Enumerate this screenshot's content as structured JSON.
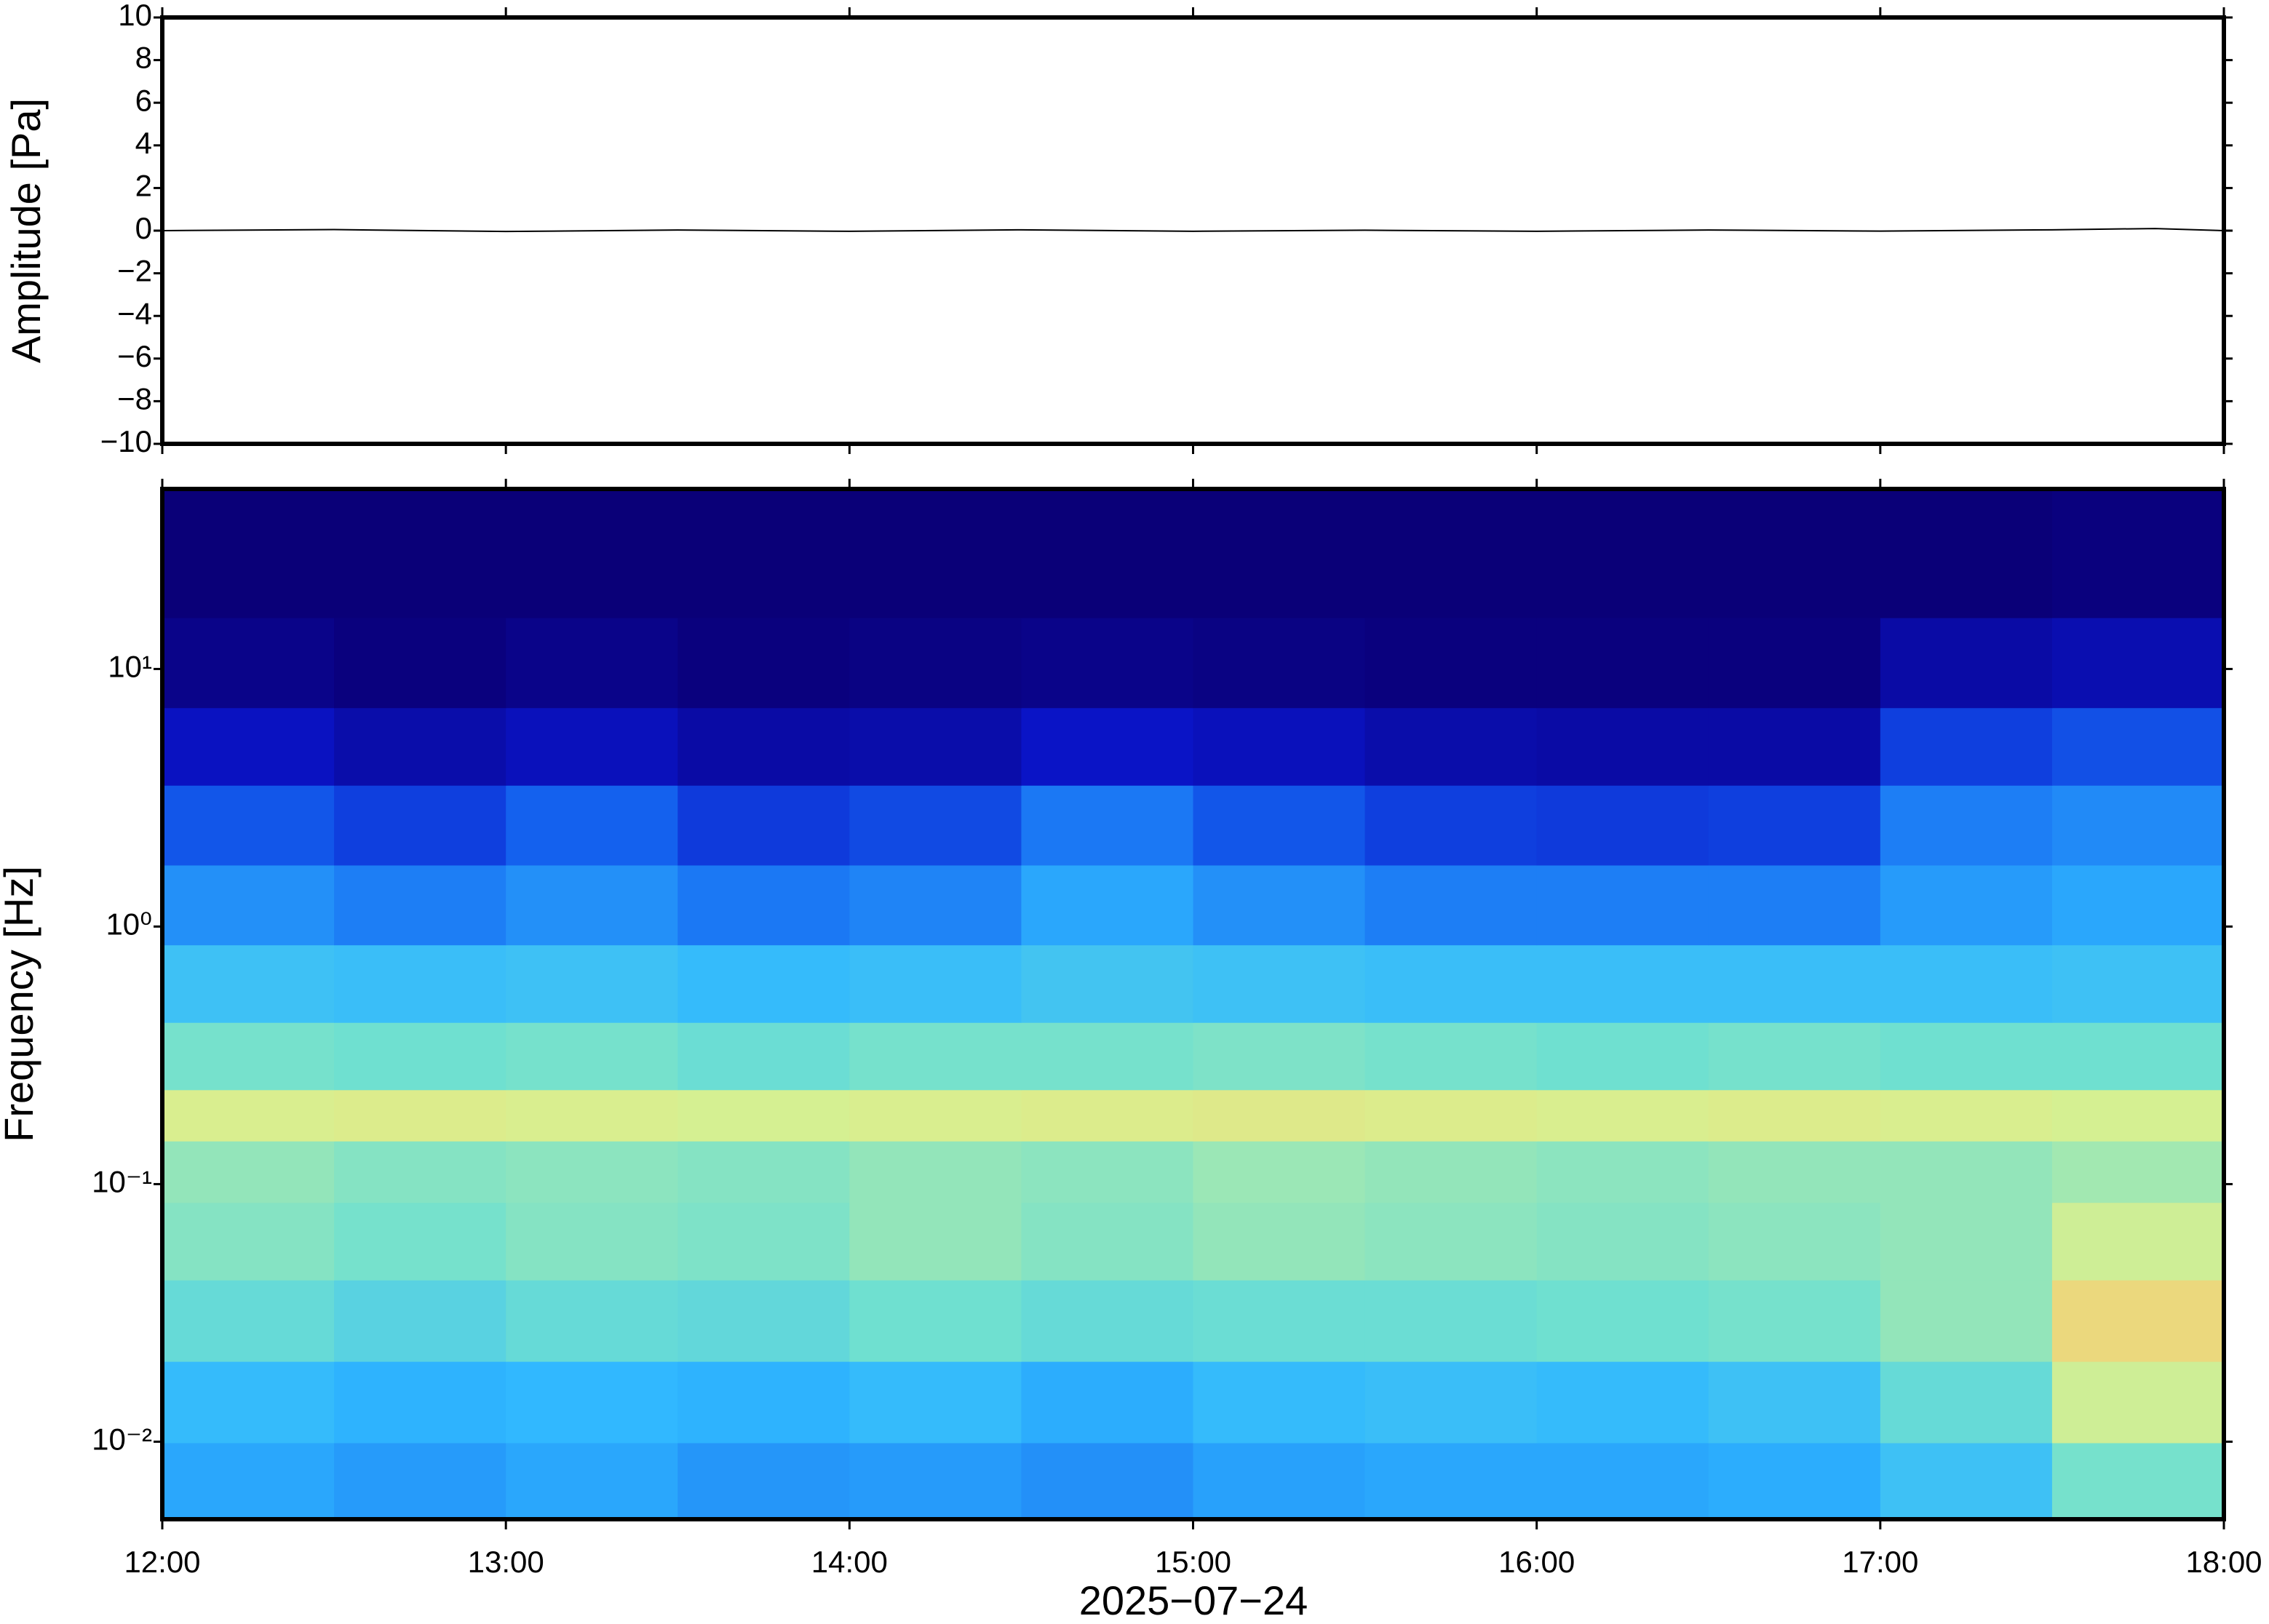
{
  "chart_data": [
    {
      "type": "line",
      "ylabel": "Amplitude [Pa]",
      "x": [
        12,
        12.5,
        13,
        13.5,
        14,
        14.5,
        15,
        15.5,
        16,
        16.5,
        17,
        17.5,
        17.8,
        18
      ],
      "values": [
        0,
        0.05,
        -0.04,
        0.03,
        -0.03,
        0.04,
        -0.03,
        0.02,
        -0.03,
        0.03,
        -0.02,
        0.04,
        0.1,
        0
      ],
      "color": "#000000",
      "xlim": [
        12,
        18
      ],
      "ylim": [
        -10,
        10
      ],
      "yticks": [
        {
          "value": -10,
          "label": "−10"
        },
        {
          "value": -8,
          "label": "−8"
        },
        {
          "value": -6,
          "label": "−6"
        },
        {
          "value": -4,
          "label": "−4"
        },
        {
          "value": -2,
          "label": "−2"
        },
        0,
        2,
        4,
        6,
        8,
        10
      ]
    },
    {
      "type": "heatmap",
      "ylabel": "Frequency [Hz]",
      "xlabel": "2025−07−24",
      "log_y": true,
      "xlim": [
        12,
        18
      ],
      "ylim": [
        0.005,
        50
      ],
      "xticks": [
        {
          "value": 12,
          "label": "12:00"
        },
        {
          "value": 13,
          "label": "13:00"
        },
        {
          "value": 14,
          "label": "14:00"
        },
        {
          "value": 15,
          "label": "15:00"
        },
        {
          "value": 16,
          "label": "16:00"
        },
        {
          "value": 17,
          "label": "17:00"
        },
        {
          "value": 18,
          "label": "18:00"
        }
      ],
      "yticks": [
        {
          "value": 0.01,
          "label": "10⁻²"
        },
        {
          "value": 0.1,
          "label": "10⁻¹"
        },
        {
          "value": 1,
          "label": "10⁰"
        },
        {
          "value": 10,
          "label": "10¹"
        }
      ],
      "x": [
        12.25,
        12.75,
        13.25,
        13.75,
        14.25,
        14.75,
        15.25,
        15.75,
        16.25,
        16.75,
        17.25,
        17.75
      ],
      "y": [
        0.007,
        0.014,
        0.03,
        0.06,
        0.12,
        0.18,
        0.3,
        0.6,
        1.2,
        2.5,
        5,
        10,
        25
      ],
      "z": [
        [
          0.4,
          0.38,
          0.4,
          0.37,
          0.38,
          0.36,
          0.39,
          0.4,
          0.4,
          0.41,
          0.46,
          0.58
        ],
        [
          0.44,
          0.42,
          0.43,
          0.42,
          0.44,
          0.41,
          0.44,
          0.45,
          0.44,
          0.46,
          0.55,
          0.7
        ],
        [
          0.55,
          0.52,
          0.55,
          0.54,
          0.57,
          0.55,
          0.56,
          0.56,
          0.57,
          0.58,
          0.62,
          0.8
        ],
        [
          0.6,
          0.58,
          0.6,
          0.59,
          0.62,
          0.6,
          0.62,
          0.61,
          0.6,
          0.61,
          0.62,
          0.7
        ],
        [
          0.62,
          0.6,
          0.61,
          0.6,
          0.62,
          0.61,
          0.63,
          0.62,
          0.61,
          0.62,
          0.62,
          0.64
        ],
        [
          0.72,
          0.73,
          0.72,
          0.71,
          0.72,
          0.73,
          0.74,
          0.73,
          0.72,
          0.73,
          0.72,
          0.71
        ],
        [
          0.58,
          0.57,
          0.58,
          0.56,
          0.58,
          0.58,
          0.59,
          0.58,
          0.57,
          0.58,
          0.57,
          0.57
        ],
        [
          0.46,
          0.45,
          0.46,
          0.44,
          0.45,
          0.47,
          0.46,
          0.45,
          0.45,
          0.45,
          0.45,
          0.46
        ],
        [
          0.36,
          0.33,
          0.36,
          0.32,
          0.34,
          0.4,
          0.36,
          0.33,
          0.33,
          0.33,
          0.38,
          0.4
        ],
        [
          0.26,
          0.22,
          0.28,
          0.21,
          0.24,
          0.32,
          0.26,
          0.22,
          0.21,
          0.22,
          0.33,
          0.35
        ],
        [
          0.13,
          0.09,
          0.12,
          0.08,
          0.09,
          0.14,
          0.12,
          0.09,
          0.08,
          0.08,
          0.22,
          0.25
        ],
        [
          0.03,
          0.01,
          0.03,
          0.01,
          0.02,
          0.03,
          0.02,
          0.01,
          0.01,
          0.01,
          0.08,
          0.1
        ],
        [
          0,
          0,
          0,
          0,
          0,
          0,
          0,
          0,
          0,
          0,
          0,
          0.01
        ]
      ],
      "colors": [
        "#0a0078",
        "#0a14c8",
        "#1464f0",
        "#30b8ff",
        "#70e0d0",
        "#d8f090",
        "#f8c870",
        "#f07030"
      ]
    }
  ]
}
